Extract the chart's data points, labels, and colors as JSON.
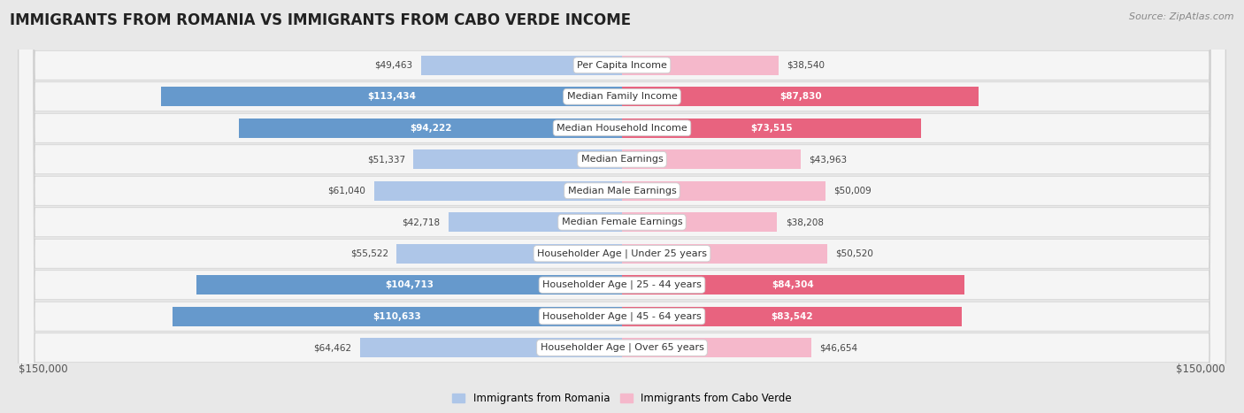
{
  "title": "IMMIGRANTS FROM ROMANIA VS IMMIGRANTS FROM CABO VERDE INCOME",
  "source": "Source: ZipAtlas.com",
  "categories": [
    "Per Capita Income",
    "Median Family Income",
    "Median Household Income",
    "Median Earnings",
    "Median Male Earnings",
    "Median Female Earnings",
    "Householder Age | Under 25 years",
    "Householder Age | 25 - 44 years",
    "Householder Age | 45 - 64 years",
    "Householder Age | Over 65 years"
  ],
  "romania_values": [
    49463,
    113434,
    94222,
    51337,
    61040,
    42718,
    55522,
    104713,
    110633,
    64462
  ],
  "caboverde_values": [
    38540,
    87830,
    73515,
    43963,
    50009,
    38208,
    50520,
    84304,
    83542,
    46654
  ],
  "romania_color_light": "#aec6e8",
  "romania_color_dark": "#6699cc",
  "caboverde_color_light": "#f5b8cb",
  "caboverde_color_dark": "#e8637f",
  "romania_threshold": 75000,
  "caboverde_threshold": 65000,
  "max_value": 150000,
  "background_color": "#e8e8e8",
  "row_bg_color": "#f5f5f5",
  "row_border_color": "#d0d0d0",
  "title_fontsize": 12,
  "source_fontsize": 8,
  "label_fontsize": 8,
  "value_fontsize": 7.5,
  "legend_label_romania": "Immigrants from Romania",
  "legend_label_caboverde": "Immigrants from Cabo Verde",
  "x_tick_label": "$150,000"
}
